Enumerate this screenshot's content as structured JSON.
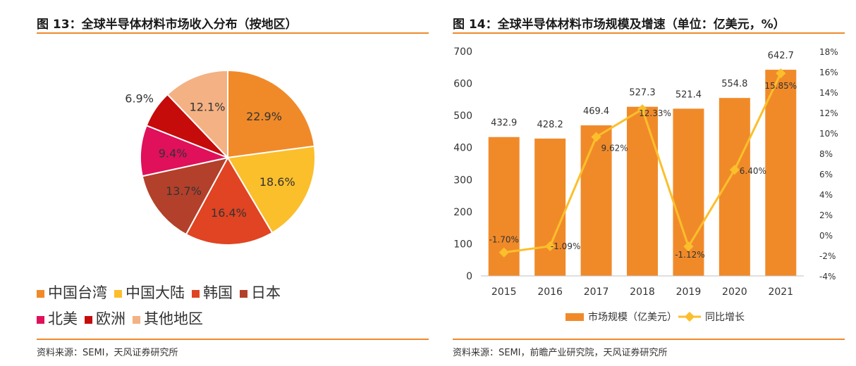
{
  "left": {
    "title": "图 13：全球半导体材料市场收入分布（按地区）",
    "source": "资料来源：SEMI，天风证券研究所"
  },
  "right": {
    "title": "图 14：全球半导体材料市场规模及增速（单位：亿美元，%）",
    "source": "资料来源：SEMI，前瞻产业研究院，天风证券研究所"
  },
  "chart_data": [
    {
      "type": "pie",
      "title": "图 13：全球半导体材料市场收入分布（按地区）",
      "labels": [
        "中国台湾",
        "中国大陆",
        "韩国",
        "日本",
        "北美",
        "欧洲",
        "其他地区"
      ],
      "values": [
        22.9,
        18.6,
        16.4,
        13.7,
        9.4,
        6.9,
        12.1
      ],
      "value_labels": [
        "22.9%",
        "18.6%",
        "16.4%",
        "13.7%",
        "9.4%",
        "6.9%",
        "12.1%"
      ],
      "colors": [
        "#f08a29",
        "#fbbf2c",
        "#e04422",
        "#b3402b",
        "#e0105a",
        "#c60b0b",
        "#f4b183"
      ],
      "legend_position": "bottom"
    },
    {
      "type": "bar+line",
      "title": "图 14：全球半导体材料市场规模及增速（单位：亿美元，%）",
      "categories": [
        "2015",
        "2016",
        "2017",
        "2018",
        "2019",
        "2020",
        "2021"
      ],
      "series": [
        {
          "name": "市场规模（亿美元）",
          "type": "bar",
          "axis": "left",
          "values": [
            432.9,
            428.2,
            469.4,
            527.3,
            521.4,
            554.8,
            642.7
          ],
          "labels": [
            "432.9",
            "428.2",
            "469.4",
            "527.3",
            "521.4",
            "554.8",
            "642.7"
          ],
          "color": "#f08a29"
        },
        {
          "name": "同比增长",
          "type": "line",
          "axis": "right",
          "values": [
            -1.7,
            -1.09,
            9.62,
            12.33,
            -1.12,
            6.4,
            15.85
          ],
          "labels": [
            "-1.70%",
            "-1.09%",
            "9.62%",
            "12.33%",
            "-1.12%",
            "6.40%",
            "15.85%"
          ],
          "color": "#fbbf2c"
        }
      ],
      "y_left": {
        "min": 0,
        "max": 700,
        "ticks": [
          0,
          100,
          200,
          300,
          400,
          500,
          600,
          700
        ]
      },
      "y_right": {
        "min": -4,
        "max": 18,
        "ticks": [
          "-4%",
          "-2%",
          "0%",
          "2%",
          "4%",
          "6%",
          "8%",
          "10%",
          "12%",
          "14%",
          "16%",
          "18%"
        ]
      },
      "grid": false,
      "legend_position": "bottom"
    }
  ]
}
